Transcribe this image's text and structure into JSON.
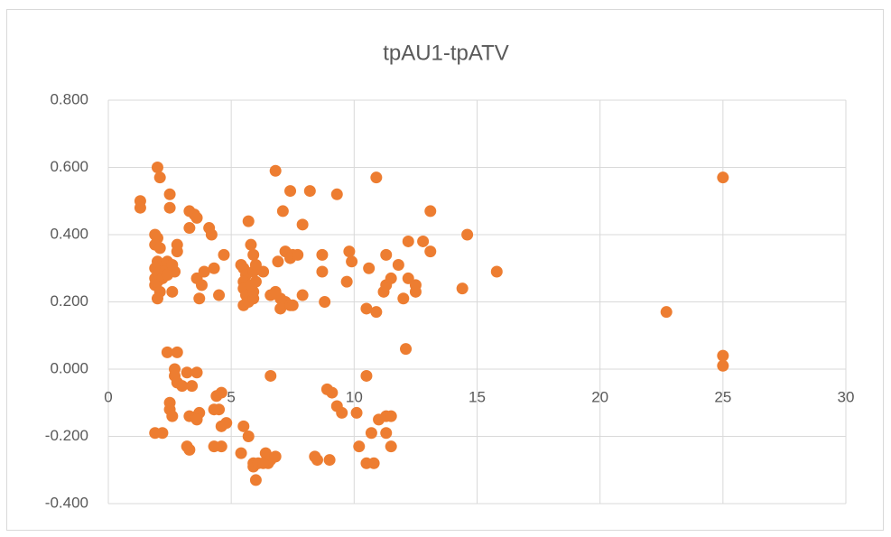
{
  "chart_data": {
    "type": "scatter",
    "title": "tpAU1-tpATV",
    "series": [
      {
        "name": "tpAU1-tpATV",
        "color": "#ED7D31",
        "x": [
          1.3,
          1.3,
          2.0,
          2.1,
          1.9,
          2.0,
          1.9,
          2.1,
          2.5,
          2.5,
          2.0,
          2.2,
          2.4,
          2.6,
          1.9,
          2.1,
          2.3,
          2.7,
          1.9,
          2.0,
          2.2,
          2.4,
          2.6,
          2.8,
          2.8,
          1.9,
          2.1,
          2.0,
          2.6,
          3.3,
          3.5,
          3.6,
          3.3,
          4.1,
          4.2,
          3.6,
          3.9,
          4.3,
          3.8,
          3.7,
          4.5,
          4.7,
          2.4,
          2.8,
          2.7,
          2.7,
          2.8,
          3.0,
          3.2,
          3.4,
          3.6,
          2.5,
          2.5,
          2.6,
          3.3,
          3.6,
          3.7,
          3.6,
          1.9,
          2.2,
          3.2,
          3.3,
          4.3,
          4.6,
          4.4,
          4.6,
          4.5,
          4.6,
          4.8,
          4.3,
          5.4,
          5.5,
          5.6,
          5.5,
          5.5,
          5.6,
          5.5,
          5.7,
          5.9,
          5.9,
          5.8,
          6.0,
          5.9,
          6.0,
          6.3,
          5.7,
          5.8,
          5.9,
          6.6,
          6.8,
          6.9,
          6.8,
          7.1,
          7.4,
          7.2,
          7.5,
          7.4,
          7.7,
          7.9,
          7.0,
          7.2,
          7.0,
          7.4,
          7.5,
          7.9,
          8.2,
          6.6,
          5.5,
          5.7,
          5.4,
          5.9,
          5.9,
          6.1,
          6.0,
          6.4,
          6.5,
          6.6,
          6.8,
          6.3,
          8.7,
          8.7,
          8.8,
          9.3,
          9.7,
          9.8,
          9.9,
          8.9,
          9.1,
          9.3,
          9.5,
          8.4,
          8.5,
          9.0,
          10.1,
          10.2,
          10.5,
          10.8,
          10.5,
          10.9,
          10.6,
          10.5,
          10.9,
          11.2,
          11.3,
          11.3,
          11.5,
          11.8,
          12.0,
          12.2,
          12.2,
          12.5,
          12.5,
          12.8,
          13.1,
          13.1,
          12.1,
          11.0,
          11.3,
          11.5,
          10.7,
          11.3,
          11.5,
          14.4,
          14.6,
          15.8,
          22.7,
          25,
          25,
          25
        ],
        "values": [
          0.5,
          0.48,
          0.6,
          0.57,
          0.4,
          0.39,
          0.37,
          0.36,
          0.52,
          0.48,
          0.32,
          0.31,
          0.32,
          0.3,
          0.3,
          0.29,
          0.29,
          0.29,
          0.27,
          0.26,
          0.27,
          0.28,
          0.31,
          0.35,
          0.37,
          0.25,
          0.23,
          0.21,
          0.23,
          0.47,
          0.46,
          0.45,
          0.42,
          0.42,
          0.4,
          0.27,
          0.29,
          0.3,
          0.25,
          0.21,
          0.22,
          0.34,
          0.05,
          0.05,
          0.0,
          -0.02,
          -0.04,
          -0.05,
          -0.01,
          -0.05,
          -0.01,
          -0.1,
          -0.12,
          -0.14,
          -0.14,
          -0.14,
          -0.13,
          -0.15,
          -0.19,
          -0.19,
          -0.23,
          -0.24,
          -0.23,
          -0.23,
          -0.08,
          -0.07,
          -0.12,
          -0.17,
          -0.16,
          -0.12,
          0.31,
          0.3,
          0.28,
          0.26,
          0.24,
          0.22,
          0.19,
          0.2,
          0.21,
          0.23,
          0.25,
          0.26,
          0.29,
          0.31,
          0.29,
          0.44,
          0.37,
          0.34,
          0.22,
          0.23,
          0.32,
          0.59,
          0.47,
          0.53,
          0.35,
          0.34,
          0.33,
          0.34,
          0.43,
          0.21,
          0.2,
          0.18,
          0.19,
          0.19,
          0.22,
          0.53,
          -0.02,
          -0.17,
          -0.2,
          -0.25,
          -0.28,
          -0.29,
          -0.28,
          -0.33,
          -0.25,
          -0.28,
          -0.27,
          -0.26,
          -0.28,
          0.34,
          0.29,
          0.2,
          0.52,
          0.26,
          0.35,
          0.32,
          -0.06,
          -0.07,
          -0.11,
          -0.13,
          -0.26,
          -0.27,
          -0.27,
          -0.13,
          -0.23,
          -0.28,
          -0.28,
          -0.02,
          0.57,
          0.3,
          0.18,
          0.17,
          0.23,
          0.34,
          0.25,
          0.27,
          0.31,
          0.21,
          0.27,
          0.38,
          0.25,
          0.23,
          0.38,
          0.47,
          0.35,
          0.06,
          -0.15,
          -0.14,
          -0.14,
          -0.19,
          -0.19,
          -0.23,
          0.24,
          0.4,
          0.29,
          0.17,
          0.57,
          0.04,
          0.01
        ]
      }
    ],
    "xlim": [
      0,
      30
    ],
    "xticks": [
      0,
      5,
      10,
      15,
      20,
      25,
      30
    ],
    "ylim": [
      -0.4,
      0.8
    ],
    "yticks": [
      {
        "value": -0.4,
        "label": "-0.400"
      },
      {
        "value": -0.2,
        "label": "-0.200"
      },
      {
        "value": 0,
        "label": "0.000"
      },
      {
        "value": 0.2,
        "label": "0.200"
      },
      {
        "value": 0.4,
        "label": "0.400"
      },
      {
        "value": 0.6,
        "label": "0.600"
      },
      {
        "value": 0.8,
        "label": "0.800"
      }
    ],
    "grid": true
  }
}
